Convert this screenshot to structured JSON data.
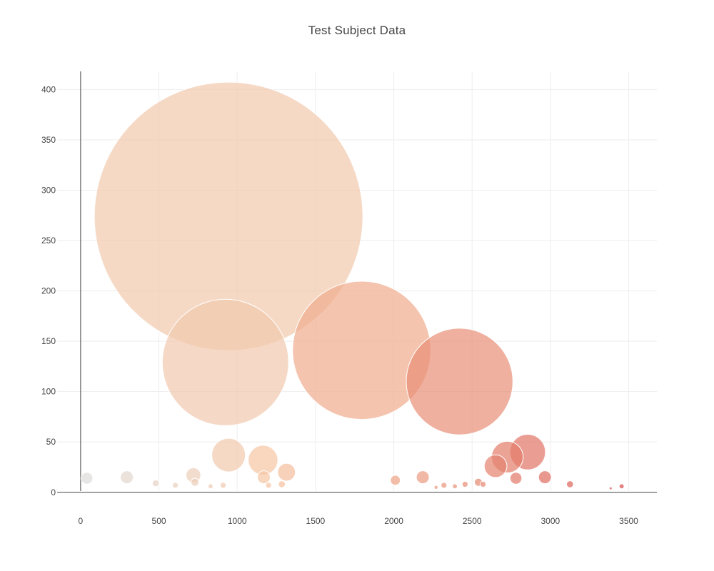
{
  "chart_data": {
    "type": "scatter",
    "subtype": "bubble",
    "title": "Test Subject Data",
    "xlabel": "",
    "ylabel": "",
    "xlim": [
      -150,
      3680
    ],
    "ylim": [
      -20,
      418
    ],
    "xticks": [
      0,
      500,
      1000,
      1500,
      2000,
      2500,
      3000,
      3500
    ],
    "yticks": [
      0,
      50,
      100,
      150,
      200,
      250,
      300,
      350,
      400
    ],
    "grid": true,
    "legend": "none",
    "colorscale": [
      "#dcdcdc",
      "#f6c4a2",
      "#e9957a",
      "#d64a4a"
    ],
    "points": [
      {
        "x": 40,
        "y": 14,
        "size": 12
      },
      {
        "x": 295,
        "y": 15,
        "size": 13
      },
      {
        "x": 480,
        "y": 9,
        "size": 7
      },
      {
        "x": 605,
        "y": 7,
        "size": 6
      },
      {
        "x": 720,
        "y": 17,
        "size": 15
      },
      {
        "x": 730,
        "y": 10,
        "size": 8
      },
      {
        "x": 830,
        "y": 6,
        "size": 5
      },
      {
        "x": 910,
        "y": 7,
        "size": 6
      },
      {
        "x": 925,
        "y": 129,
        "size": 128
      },
      {
        "x": 945,
        "y": 37,
        "size": 34
      },
      {
        "x": 945,
        "y": 274,
        "size": 272
      },
      {
        "x": 1165,
        "y": 32,
        "size": 30
      },
      {
        "x": 1170,
        "y": 15,
        "size": 13
      },
      {
        "x": 1200,
        "y": 7,
        "size": 6
      },
      {
        "x": 1285,
        "y": 8,
        "size": 7
      },
      {
        "x": 1315,
        "y": 20,
        "size": 18
      },
      {
        "x": 1795,
        "y": 141,
        "size": 140
      },
      {
        "x": 2010,
        "y": 12,
        "size": 10
      },
      {
        "x": 2185,
        "y": 15,
        "size": 13
      },
      {
        "x": 2270,
        "y": 5,
        "size": 4
      },
      {
        "x": 2320,
        "y": 7,
        "size": 6
      },
      {
        "x": 2390,
        "y": 6,
        "size": 5
      },
      {
        "x": 2420,
        "y": 110,
        "size": 108
      },
      {
        "x": 2455,
        "y": 8,
        "size": 6
      },
      {
        "x": 2540,
        "y": 10,
        "size": 8
      },
      {
        "x": 2570,
        "y": 8,
        "size": 6
      },
      {
        "x": 2650,
        "y": 26,
        "size": 23
      },
      {
        "x": 2725,
        "y": 35,
        "size": 32
      },
      {
        "x": 2780,
        "y": 14,
        "size": 12
      },
      {
        "x": 2855,
        "y": 40,
        "size": 36
      },
      {
        "x": 2965,
        "y": 15,
        "size": 13
      },
      {
        "x": 3125,
        "y": 8,
        "size": 7
      },
      {
        "x": 3385,
        "y": 4,
        "size": 3
      },
      {
        "x": 3455,
        "y": 6,
        "size": 5
      }
    ]
  }
}
